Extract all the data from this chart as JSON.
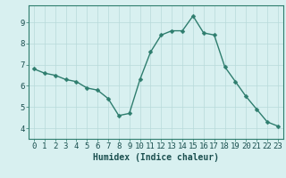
{
  "x": [
    0,
    1,
    2,
    3,
    4,
    5,
    6,
    7,
    8,
    9,
    10,
    11,
    12,
    13,
    14,
    15,
    16,
    17,
    18,
    19,
    20,
    21,
    22,
    23
  ],
  "y": [
    6.8,
    6.6,
    6.5,
    6.3,
    6.2,
    5.9,
    5.8,
    5.4,
    4.6,
    4.7,
    6.3,
    7.6,
    8.4,
    8.6,
    8.6,
    9.3,
    8.5,
    8.4,
    6.9,
    6.2,
    5.5,
    4.9,
    4.3,
    4.1
  ],
  "xlabel": "Humidex (Indice chaleur)",
  "ylim": [
    3.5,
    9.8
  ],
  "xlim": [
    -0.5,
    23.5
  ],
  "yticks": [
    4,
    5,
    6,
    7,
    8,
    9
  ],
  "xticks": [
    0,
    1,
    2,
    3,
    4,
    5,
    6,
    7,
    8,
    9,
    10,
    11,
    12,
    13,
    14,
    15,
    16,
    17,
    18,
    19,
    20,
    21,
    22,
    23
  ],
  "line_color": "#2e7d6e",
  "marker_color": "#2e7d6e",
  "bg_color": "#d8f0f0",
  "grid_color": "#b8dada",
  "axis_color": "#2e7d6e",
  "text_color": "#1a4f4f",
  "xlabel_fontsize": 7,
  "tick_fontsize": 6.5,
  "line_width": 1.0,
  "marker_size": 2.5
}
